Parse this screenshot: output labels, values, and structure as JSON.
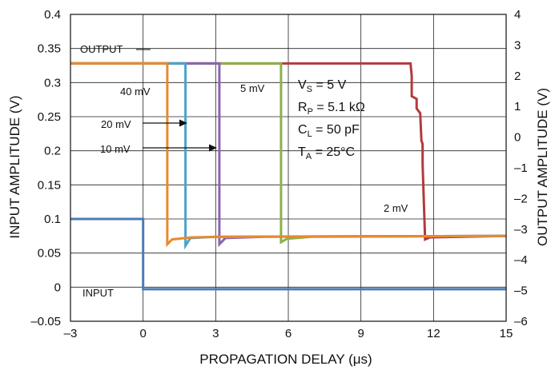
{
  "chart_data": {
    "type": "line",
    "xlabel": "PROPAGATION DELAY (μs)",
    "ylabel_left": "INPUT AMPLITUDE (V)",
    "ylabel_right": "OUTPUT AMPLITUDE (V)",
    "xlim": [
      -3,
      15
    ],
    "ylim_left": [
      -0.05,
      0.4
    ],
    "ylim_right": [
      -6,
      4
    ],
    "x_ticks": [
      "–3",
      "0",
      "3",
      "6",
      "9",
      "12",
      "15"
    ],
    "y_left_ticks": [
      "–0.05",
      "0",
      "0.05",
      "0.1",
      "0.15",
      "0.2",
      "0.25",
      "0.3",
      "0.35",
      "0.4"
    ],
    "y_right_ticks": [
      "–6",
      "–5",
      "–4",
      "–3",
      "–2",
      "–1",
      "0",
      "1",
      "2",
      "3",
      "4"
    ],
    "grid": true,
    "colors": {
      "input": "#4a7bb5",
      "40mV": "#e88a2e",
      "20mV": "#4aa3c9",
      "10mV": "#8a64b0",
      "5mV": "#8cb14a",
      "2mV": "#b23a3e"
    },
    "series": [
      {
        "key": "input",
        "axis": "left",
        "x": [
          -3,
          0,
          0,
          15
        ],
        "y": [
          0.1,
          0.1,
          -0.003,
          -0.003
        ]
      },
      {
        "key": "40mV",
        "axis": "left",
        "x": [
          -3,
          1.0,
          1.0,
          1.2,
          2,
          4,
          15
        ],
        "y": [
          0.328,
          0.328,
          0.063,
          0.07,
          0.073,
          0.074,
          0.075
        ]
      },
      {
        "key": "20mV",
        "axis": "left",
        "x": [
          -3,
          1.75,
          1.75,
          1.95,
          3,
          15
        ],
        "y": [
          0.328,
          0.328,
          0.061,
          0.072,
          0.074,
          0.075
        ]
      },
      {
        "key": "10mV",
        "axis": "left",
        "x": [
          -3,
          3.15,
          3.15,
          3.4,
          5,
          15
        ],
        "y": [
          0.328,
          0.328,
          0.063,
          0.072,
          0.074,
          0.075
        ]
      },
      {
        "key": "5mV",
        "axis": "left",
        "x": [
          -3,
          5.7,
          5.7,
          5.95,
          7,
          15
        ],
        "y": [
          0.328,
          0.328,
          0.066,
          0.071,
          0.074,
          0.075
        ]
      },
      {
        "key": "2mV",
        "axis": "left",
        "x": [
          -3,
          11.05,
          11.1,
          11.1,
          11.3,
          11.3,
          11.45,
          11.5,
          11.55,
          11.55,
          11.65,
          11.85,
          15
        ],
        "y": [
          0.328,
          0.328,
          0.31,
          0.28,
          0.276,
          0.262,
          0.255,
          0.215,
          0.21,
          0.18,
          0.07,
          0.073,
          0.075
        ]
      }
    ],
    "annotations": {
      "output": "OUTPUT",
      "input": "INPUT",
      "mv40": "40 mV",
      "mv20": "20 mV",
      "mv10": "10 mV",
      "mv5": "5 mV",
      "mv2": "2 mV"
    },
    "conditions": [
      {
        "main": "V",
        "sub": "S",
        "rest": " = 5 V"
      },
      {
        "main": "R",
        "sub": "P",
        "rest": " = 5.1 kΩ"
      },
      {
        "main": "C",
        "sub": "L",
        "rest": " = 50 pF"
      },
      {
        "main": "T",
        "sub": "A",
        "rest": " = 25°C"
      }
    ]
  }
}
